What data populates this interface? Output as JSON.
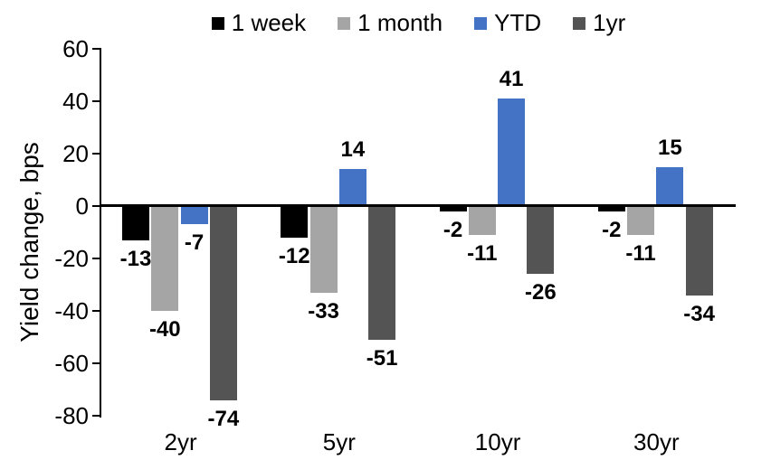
{
  "chart_data": {
    "type": "bar",
    "title": "",
    "xlabel": "",
    "ylabel": "Yield change, bps",
    "categories": [
      "2yr",
      "5yr",
      "10yr",
      "30yr"
    ],
    "series": [
      {
        "name": "1 week",
        "color": "#000000",
        "values": [
          -13,
          -12,
          -2,
          -2
        ]
      },
      {
        "name": "1 month",
        "color": "#A5A5A5",
        "values": [
          -40,
          -33,
          -11,
          -11
        ]
      },
      {
        "name": "YTD",
        "color": "#4472C4",
        "values": [
          -7,
          14,
          41,
          15
        ]
      },
      {
        "name": "1yr",
        "color": "#545454",
        "values": [
          -74,
          -51,
          -26,
          -34
        ]
      }
    ],
    "ylim": [
      -80,
      60
    ],
    "yticks": [
      60,
      40,
      20,
      0,
      -20,
      -40,
      -60,
      -80
    ],
    "grid": false,
    "legend_position": "top",
    "data_labels": true,
    "axis_color": "#000000",
    "background_color": "#FFFFFF"
  }
}
